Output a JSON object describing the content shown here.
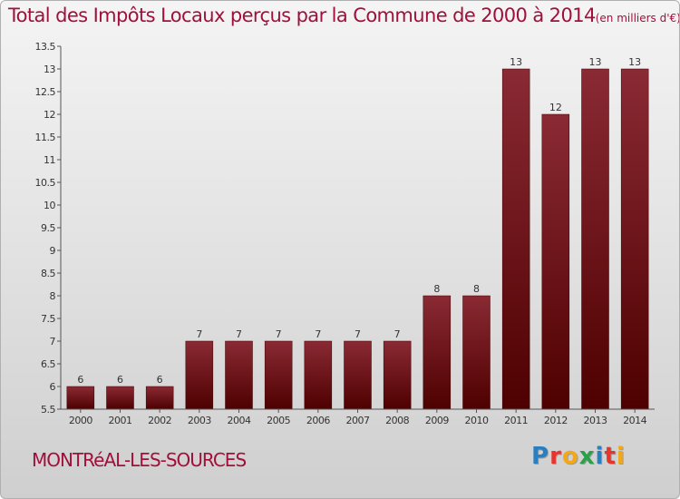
{
  "title": "Total des Impôts Locaux perçus par la Commune de 2000 à 2014",
  "unit_note": "(en milliers d'€)",
  "commune": "MONTRéAL-LES-SOURCES",
  "logo": {
    "text": "Proxiti",
    "letters": [
      {
        "ch": "P",
        "color": "#2a7fc1"
      },
      {
        "ch": "r",
        "color": "#e8352b"
      },
      {
        "ch": "o",
        "color": "#f3a81a"
      },
      {
        "ch": "x",
        "color": "#2aa04a"
      },
      {
        "ch": "i",
        "color": "#2a7fc1"
      },
      {
        "ch": "t",
        "color": "#e8352b"
      },
      {
        "ch": "i",
        "color": "#f3a81a"
      }
    ]
  },
  "chart_data": {
    "type": "bar",
    "title": "Total des Impôts Locaux perçus par la Commune de 2000 à 2014",
    "xlabel": "",
    "ylabel": "",
    "categories": [
      "2000",
      "2001",
      "2002",
      "2003",
      "2004",
      "2005",
      "2006",
      "2007",
      "2008",
      "2009",
      "2010",
      "2011",
      "2012",
      "2013",
      "2014"
    ],
    "values": [
      6,
      6,
      6,
      7,
      7,
      7,
      7,
      7,
      7,
      8,
      8,
      13,
      12,
      13,
      13
    ],
    "ylim": [
      5.5,
      13.5
    ],
    "yticks": [
      "5.5",
      "6",
      "6.5",
      "7",
      "7.5",
      "8",
      "8.5",
      "9",
      "9.5",
      "10",
      "10.5",
      "11",
      "11.5",
      "12",
      "12.5",
      "13",
      "13.5"
    ],
    "grid": false,
    "bar_color": "#7a1a24"
  }
}
